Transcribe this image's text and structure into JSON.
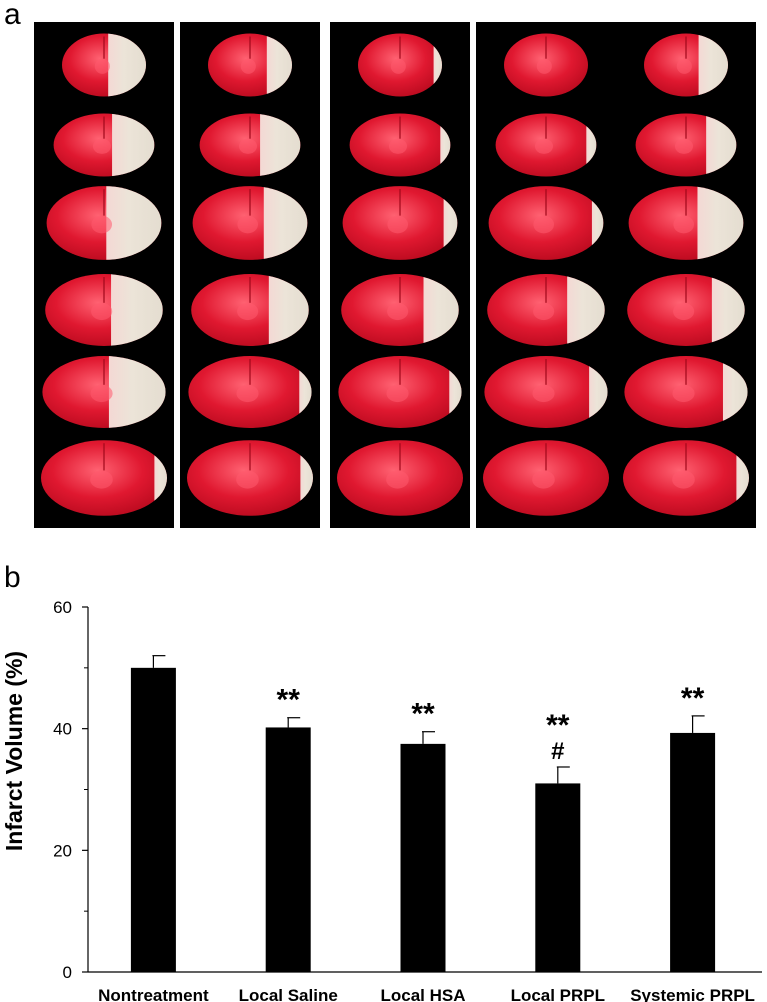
{
  "panels": {
    "a_label": "a",
    "b_label": "b"
  },
  "photo_panel": {
    "columns": 5,
    "rows": 6,
    "colors": {
      "background": "#000000",
      "tissue_stained": "#d8102a",
      "tissue_highlight": "#ff5a6e",
      "infarct": "#ede4d8"
    }
  },
  "chart_data": {
    "type": "bar",
    "categories": [
      "Nontreatment",
      "Local Saline",
      "Local HSA",
      "Local PRPL",
      "Systemic PRPL"
    ],
    "values": [
      50,
      40.2,
      37.5,
      31,
      39.3
    ],
    "errors": [
      2,
      1.6,
      2,
      2.7,
      2.8
    ],
    "annotations": [
      "",
      "**",
      "**",
      "**\n#",
      "**"
    ],
    "title": "",
    "xlabel": "",
    "ylabel": "Infarct Volume (%)",
    "ylim": [
      0,
      60
    ],
    "yticks": [
      0,
      20,
      40,
      60
    ],
    "bar_color": "#000000",
    "grid": false
  }
}
